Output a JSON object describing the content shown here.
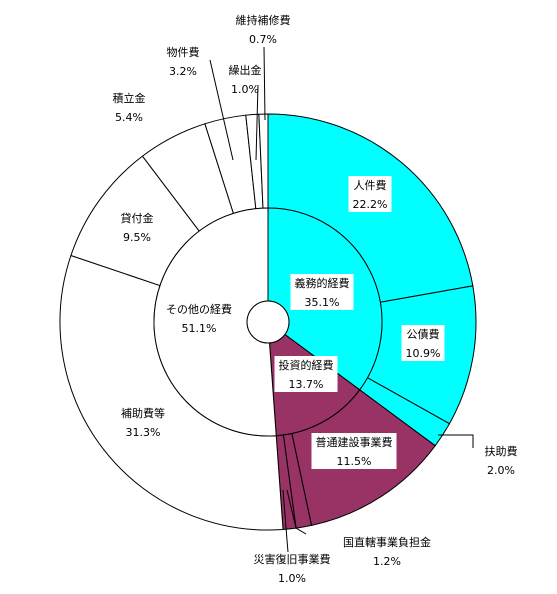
{
  "chart_data": {
    "type": "pie",
    "style": "nested-donut",
    "colors": {
      "義務的経費": "#00ffff",
      "投資的経費": "#993366",
      "その他の経費": "#ffffff"
    },
    "inner": [
      {
        "name": "義務的経費",
        "label": "義務的経費",
        "pct": "35.1%",
        "value": 35.1
      },
      {
        "name": "投資的経費",
        "label": "投資的経費",
        "pct": "13.7%",
        "value": 13.7
      },
      {
        "name": "その他の経費",
        "label": "その他の経費",
        "pct": "51.1%",
        "value": 51.1
      }
    ],
    "outer": [
      {
        "name": "人件費",
        "label": "人件費",
        "pct": "22.2%",
        "value": 22.2,
        "group": "義務的経費"
      },
      {
        "name": "公債費",
        "label": "公債費",
        "pct": "10.9%",
        "value": 10.9,
        "group": "義務的経費"
      },
      {
        "name": "扶助費",
        "label": "扶助費",
        "pct": "2.0%",
        "value": 2.0,
        "group": "義務的経費"
      },
      {
        "name": "普通建設事業費",
        "label": "普通建設事業費",
        "pct": "11.5%",
        "value": 11.5,
        "group": "投資的経費"
      },
      {
        "name": "国直轄事業負担金",
        "label": "国直轄事業負担金",
        "pct": "1.2%",
        "value": 1.2,
        "group": "投資的経費"
      },
      {
        "name": "災害復旧事業費",
        "label": "災害復旧事業費",
        "pct": "1.0%",
        "value": 1.0,
        "group": "投資的経費"
      },
      {
        "name": "補助費等",
        "label": "補助費等",
        "pct": "31.3%",
        "value": 31.3,
        "group": "その他の経費"
      },
      {
        "name": "貸付金",
        "label": "貸付金",
        "pct": "9.5%",
        "value": 9.5,
        "group": "その他の経費"
      },
      {
        "name": "積立金",
        "label": "積立金",
        "pct": "5.4%",
        "value": 5.4,
        "group": "その他の経費"
      },
      {
        "name": "物件費",
        "label": "物件費",
        "pct": "3.2%",
        "value": 3.2,
        "group": "その他の経費"
      },
      {
        "name": "繰出金",
        "label": "繰出金",
        "pct": "1.0%",
        "value": 1.0,
        "group": "その他の経費"
      },
      {
        "name": "維持補修費",
        "label": "維持補修費",
        "pct": "0.7%",
        "value": 0.7,
        "group": "その他の経費"
      }
    ]
  }
}
